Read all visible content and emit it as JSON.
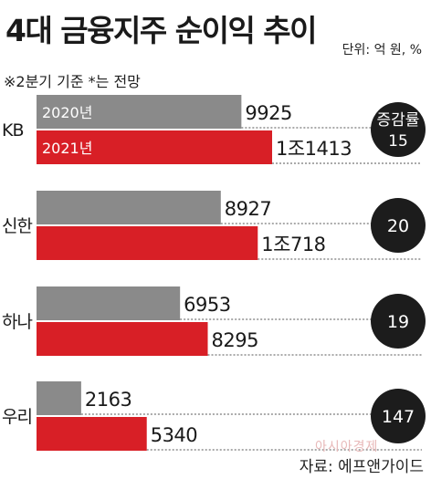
{
  "title": "4대 금융지주 순이익 추이",
  "unit": "단위: 억 원, %",
  "note": "※2분기 기준 *는 전망",
  "source": "자료: 에프앤가이드",
  "watermark": "아시아경제",
  "badge_header": "증감률",
  "colors": {
    "series_2020": "#8a8a8a",
    "series_2021": "#d81f26",
    "badge": "#1c1c1c",
    "text": "#1a1a1a"
  },
  "chart_data": {
    "type": "bar",
    "orientation": "horizontal",
    "categories": [
      "KB",
      "신한",
      "하나",
      "우리"
    ],
    "series": [
      {
        "name": "2020년",
        "values": [
          9925,
          8927,
          6953,
          2163
        ],
        "labels": [
          "9925",
          "8927",
          "6953",
          "2163"
        ]
      },
      {
        "name": "2021년",
        "values": [
          11413,
          10718,
          8295,
          5340
        ],
        "labels": [
          "1조1413",
          "1조718",
          "8295",
          "5340"
        ]
      }
    ],
    "growth_rate": [
      15,
      20,
      19,
      147
    ],
    "xlim": [
      0,
      16000
    ],
    "grid": false,
    "legend": "inside first bars"
  }
}
